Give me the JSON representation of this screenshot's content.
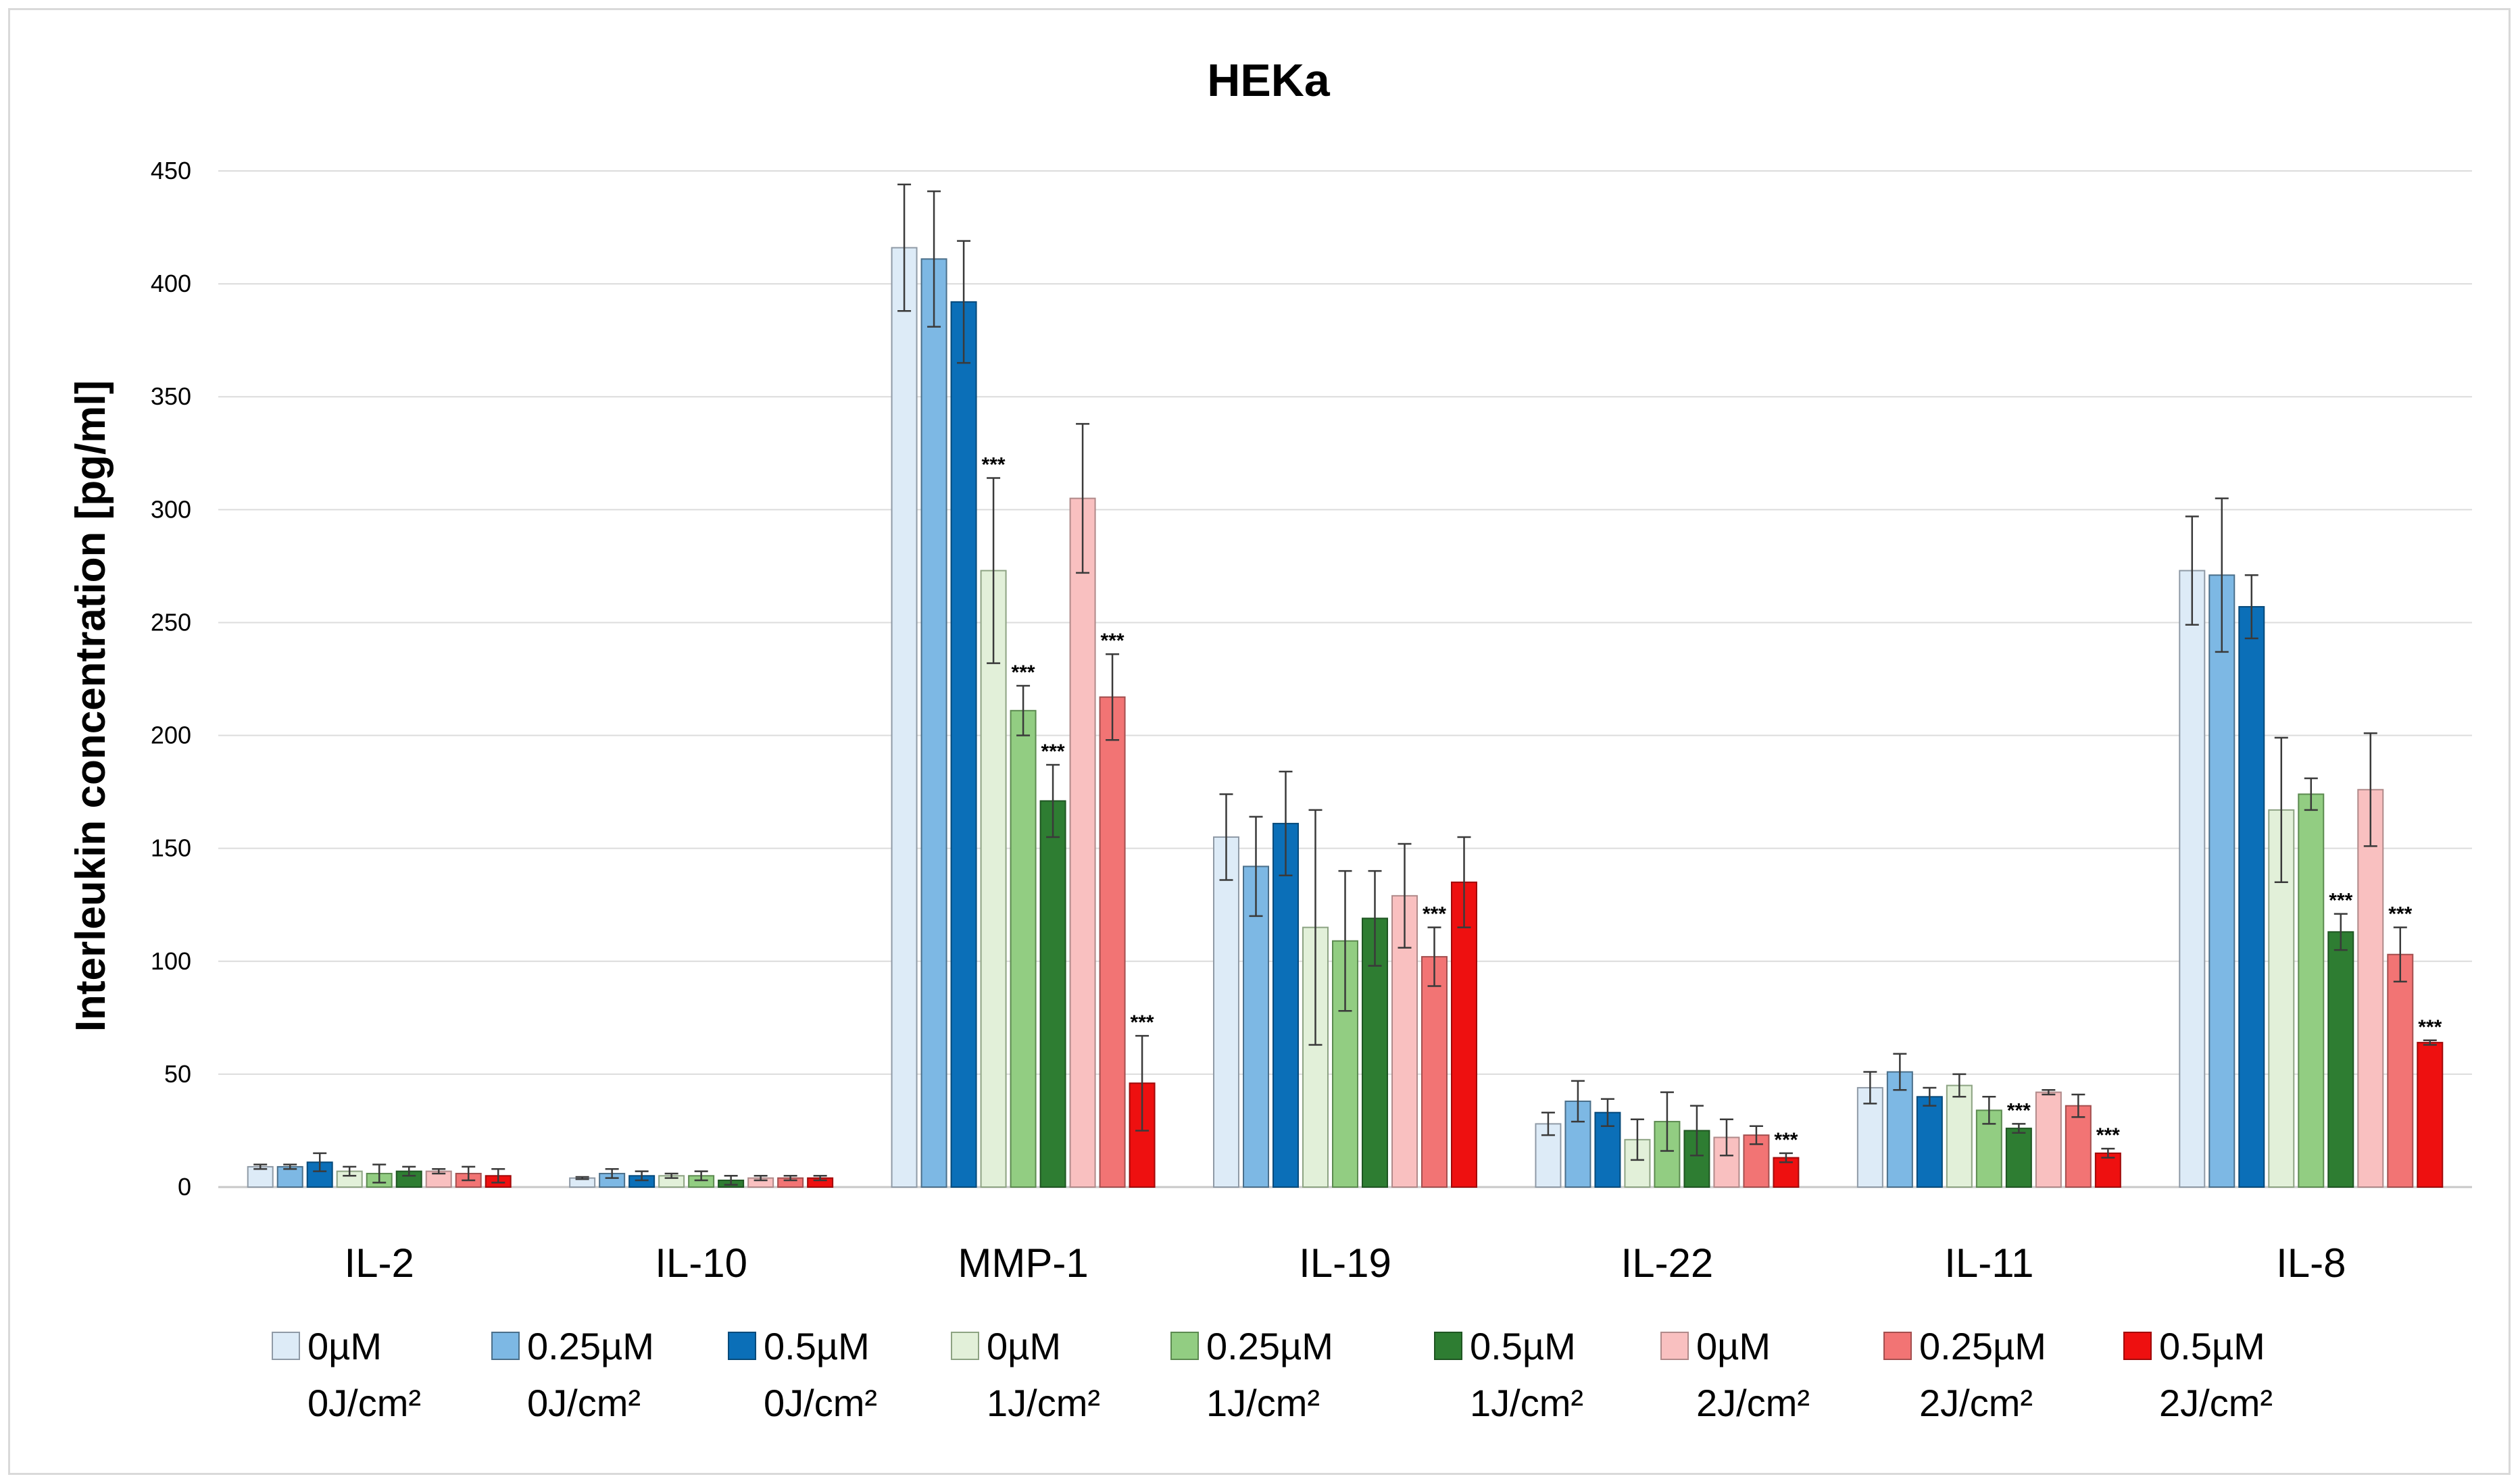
{
  "chart_data": {
    "type": "bar",
    "title": "HEKa",
    "xlabel": "",
    "ylabel": "Interleukin concentration [pg/ml]",
    "ylim": [
      0,
      450
    ],
    "yticks": [
      0,
      50,
      100,
      150,
      200,
      250,
      300,
      350,
      400,
      450
    ],
    "grid": true,
    "legend_position": "bottom",
    "categories": [
      "IL-2",
      "IL-10",
      "MMP-1",
      "IL-19",
      "IL-22",
      "IL-11",
      "IL-8"
    ],
    "significance_marker": "***",
    "series": [
      {
        "name": "0µM 0J/cm²",
        "label1": "0µM",
        "label2": "0J/cm²",
        "color": "#DDEBF7",
        "border": "#8f9aa6",
        "values": [
          9,
          4,
          416,
          155,
          28,
          44,
          273
        ],
        "errors": [
          1,
          0.5,
          28,
          19,
          5,
          7,
          24
        ],
        "sig": [
          false,
          false,
          false,
          false,
          false,
          false,
          false
        ]
      },
      {
        "name": "0.25µM 0J/cm²",
        "label1": "0.25µM",
        "label2": "0J/cm²",
        "color": "#7DB8E4",
        "border": "#4b6f8a",
        "values": [
          9,
          6,
          411,
          142,
          38,
          51,
          271
        ],
        "errors": [
          1,
          2,
          30,
          22,
          9,
          8,
          34
        ],
        "sig": [
          false,
          false,
          false,
          false,
          false,
          false,
          false
        ]
      },
      {
        "name": "0.5µM 0J/cm²",
        "label1": "0.5µM",
        "label2": "0J/cm²",
        "color": "#0B6FB8",
        "border": "#074a7a",
        "values": [
          11,
          5,
          392,
          161,
          33,
          40,
          257
        ],
        "errors": [
          4,
          2,
          27,
          23,
          6,
          4,
          14
        ],
        "sig": [
          false,
          false,
          false,
          false,
          false,
          false,
          false
        ]
      },
      {
        "name": "0µM 1J/cm²",
        "label1": "0µM",
        "label2": "1J/cm²",
        "color": "#E2F0D9",
        "border": "#8da383",
        "values": [
          7,
          5,
          273,
          115,
          21,
          45,
          167
        ],
        "errors": [
          2,
          1,
          41,
          52,
          9,
          5,
          32
        ],
        "sig": [
          false,
          false,
          true,
          false,
          false,
          false,
          false
        ]
      },
      {
        "name": "0.25µM 1J/cm²",
        "label1": "0.25µM",
        "label2": "1J/cm²",
        "color": "#92CD82",
        "border": "#5c8a50",
        "values": [
          6,
          5,
          211,
          109,
          29,
          34,
          174
        ],
        "errors": [
          4,
          2,
          11,
          31,
          13,
          6,
          7
        ],
        "sig": [
          false,
          false,
          true,
          false,
          false,
          false,
          false
        ]
      },
      {
        "name": "0.5µM 1J/cm²",
        "label1": "0.5µM",
        "label2": "1J/cm²",
        "color": "#2E7D32",
        "border": "#1f5522",
        "values": [
          7,
          3,
          171,
          119,
          25,
          26,
          113
        ],
        "errors": [
          2,
          2,
          16,
          21,
          11,
          2,
          8
        ],
        "sig": [
          false,
          false,
          true,
          false,
          false,
          true,
          true
        ]
      },
      {
        "name": "0µM 2J/cm²",
        "label1": "0µM",
        "label2": "2J/cm²",
        "color": "#F9C0C0",
        "border": "#b08a8a",
        "values": [
          7,
          4,
          305,
          129,
          22,
          42,
          176
        ],
        "errors": [
          1,
          1,
          33,
          23,
          8,
          1,
          25
        ],
        "sig": [
          false,
          false,
          false,
          false,
          false,
          false,
          false
        ]
      },
      {
        "name": "0.25µM 2J/cm²",
        "label1": "0.25µM",
        "label2": "2J/cm²",
        "color": "#F27474",
        "border": "#a34f4f",
        "values": [
          6,
          4,
          217,
          102,
          23,
          36,
          103
        ],
        "errors": [
          3,
          1,
          19,
          13,
          4,
          5,
          12
        ],
        "sig": [
          false,
          false,
          true,
          true,
          false,
          false,
          true
        ]
      },
      {
        "name": "0.5µM 2J/cm²",
        "label1": "0.5µM",
        "label2": "2J/cm²",
        "color": "#EE1010",
        "border": "#a00a0a",
        "values": [
          5,
          4,
          46,
          135,
          13,
          15,
          64
        ],
        "errors": [
          3,
          1,
          21,
          20,
          2,
          2,
          1
        ],
        "sig": [
          false,
          false,
          true,
          false,
          true,
          true,
          true
        ]
      }
    ]
  }
}
